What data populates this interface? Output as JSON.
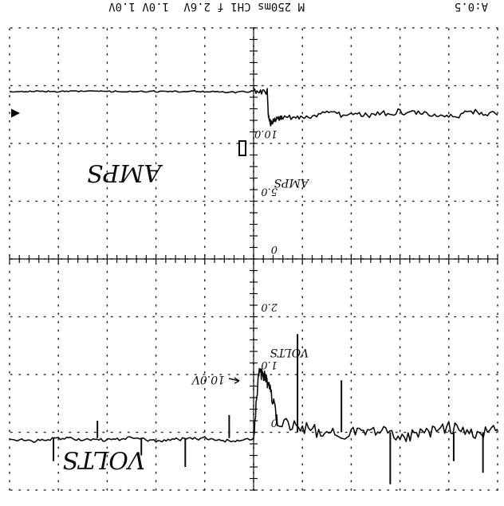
{
  "status_bar": {
    "left": "A:0.5",
    "middle": "M 250ms CH1 f 2.6V",
    "right": "1.0V 1.0V"
  },
  "annotations": {
    "amps_top": "AMPS",
    "amps_scale": "AMPS",
    "volts_bottom": "VOLTS",
    "volts_scale": "VOLTS",
    "arrow_label": "10.0V"
  },
  "colors": {
    "ink": "#111111",
    "grid": "#333333",
    "paper": "#ffffff"
  },
  "chart_data": {
    "type": "line",
    "title": "",
    "xlabel": "",
    "ylabel": "",
    "xlim": [
      0,
      10
    ],
    "ylim": [
      0,
      8
    ],
    "grid": true,
    "orientation": "rotated-180",
    "y_scale_labels": [
      "0",
      "1.0",
      "2.0",
      "0",
      "5.0",
      "10.0"
    ],
    "series": [
      {
        "name": "AMPS",
        "x": [
          0.0,
          0.5,
          1.0,
          1.5,
          2.0,
          2.5,
          3.0,
          3.5,
          4.0,
          4.5,
          4.65,
          4.75,
          4.8,
          4.9,
          5.0,
          5.5,
          6.0,
          6.5,
          7.0,
          7.5,
          8.0,
          8.5,
          9.0,
          9.5,
          10.0
        ],
        "y": [
          6.95,
          7.05,
          6.9,
          7.0,
          7.1,
          6.95,
          7.0,
          7.05,
          6.9,
          6.85,
          6.3,
          6.1,
          6.0,
          6.0,
          7.1,
          7.15,
          7.1,
          7.12,
          7.15,
          7.1,
          7.14,
          7.12,
          7.1,
          7.15,
          7.12
        ]
      },
      {
        "name": "VOLTS",
        "x": [
          0.0,
          0.5,
          1.0,
          1.5,
          2.0,
          2.5,
          3.0,
          3.5,
          4.0,
          4.4,
          4.55,
          4.65,
          4.7,
          4.72,
          5.0,
          5.5,
          6.0,
          6.5,
          7.0,
          7.5,
          8.0,
          8.5,
          9.0,
          9.5,
          10.0
        ],
        "y": [
          1.5,
          1.45,
          1.55,
          1.5,
          1.45,
          1.5,
          1.52,
          1.48,
          1.55,
          1.55,
          1.6,
          1.65,
          1.5,
          1.1,
          1.1,
          1.12,
          1.1,
          1.1,
          1.1,
          1.1,
          1.1,
          1.1,
          1.1,
          1.1,
          1.1
        ]
      }
    ]
  }
}
